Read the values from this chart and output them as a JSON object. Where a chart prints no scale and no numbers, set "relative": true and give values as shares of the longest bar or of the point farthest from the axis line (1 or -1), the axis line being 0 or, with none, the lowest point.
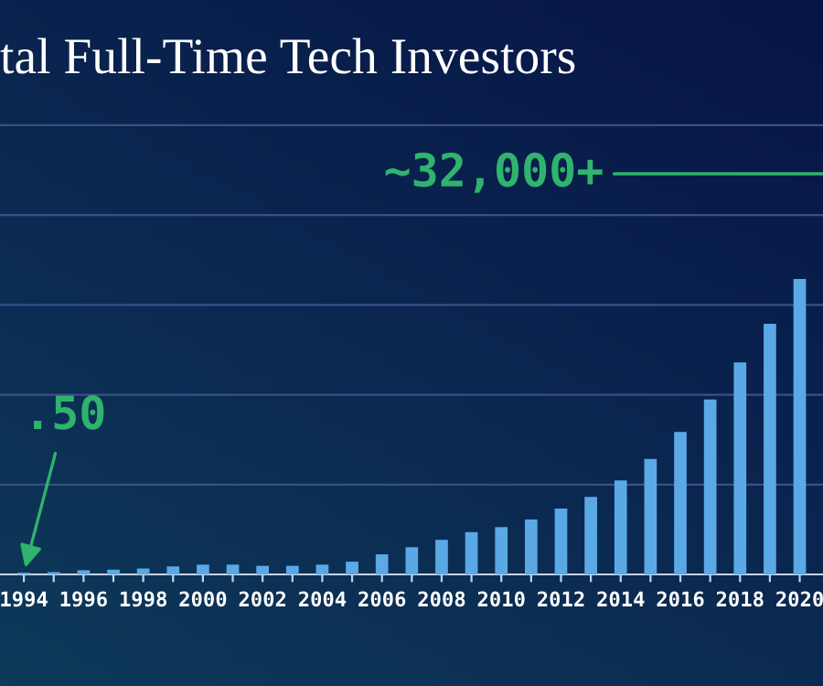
{
  "chart_data": {
    "type": "bar",
    "title": "tal Full-Time Tech Investors",
    "relative": true,
    "ref_lines": [
      {
        "axis": "y",
        "value": 0.304,
        "color": "#3a4f86"
      },
      {
        "axis": "y",
        "value": 0.608,
        "color": "#3a4f86"
      },
      {
        "axis": "y",
        "value": 0.912,
        "color": "#3a4f86"
      },
      {
        "axis": "y",
        "value": 1.216,
        "color": "#3a4f86"
      },
      {
        "axis": "y",
        "value": 1.52,
        "color": "#3a4f86"
      }
    ],
    "color": "#5aa9e6",
    "categories": [
      "1994",
      null,
      "1996",
      null,
      "1998",
      null,
      "2000",
      null,
      "2002",
      null,
      "2004",
      null,
      "2006",
      null,
      "2008",
      null,
      "2010",
      null,
      "2012",
      null,
      "2014",
      null,
      "2016",
      null,
      "2018",
      null,
      "2020"
    ],
    "values": [
      0.006,
      0.008,
      0.014,
      0.016,
      0.02,
      0.027,
      0.033,
      0.033,
      0.029,
      0.029,
      0.033,
      0.043,
      0.068,
      0.092,
      0.117,
      0.143,
      0.16,
      0.186,
      0.223,
      0.262,
      0.318,
      0.391,
      0.482,
      0.592,
      0.717,
      0.848,
      1
    ],
    "annotations": [
      "~32,000+",
      ".50"
    ]
  }
}
